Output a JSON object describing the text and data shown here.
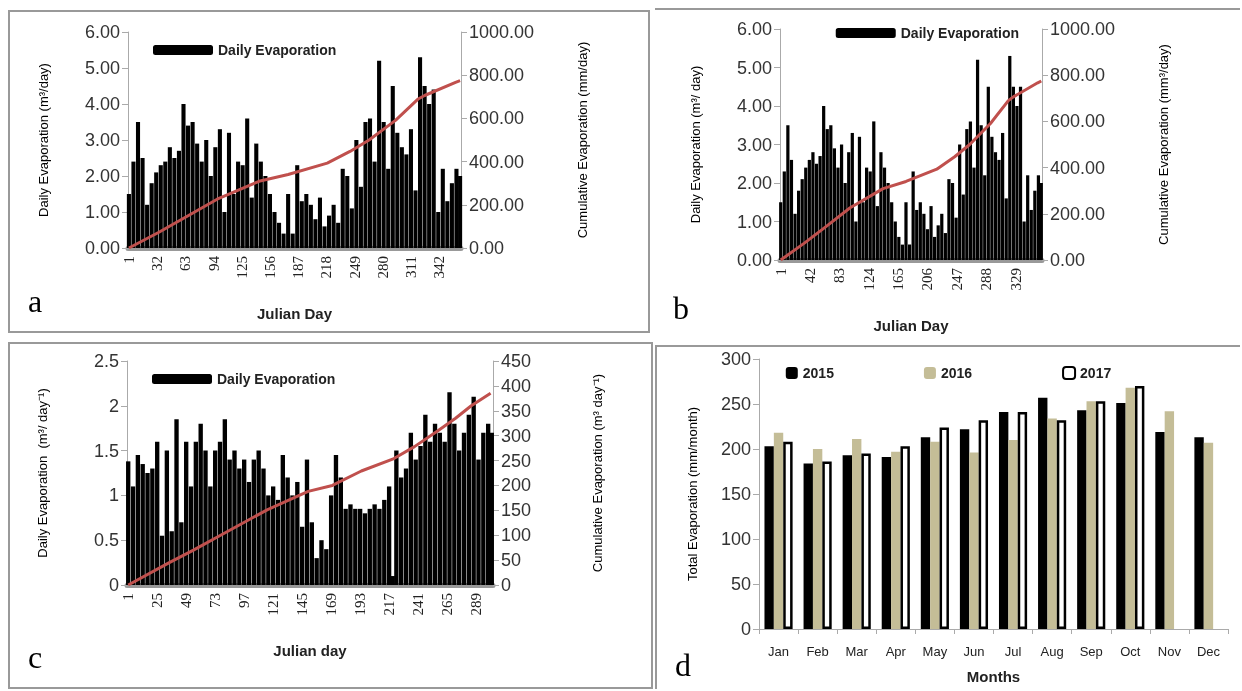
{
  "chart_data": [
    {
      "type": "bar",
      "xlabel": "Julian Day",
      "ylabel": "Daily Evaporation (m³/day)",
      "y2label": "Cumulative Evaporation (mm/day)",
      "legend": "top left",
      "marker": "none",
      "annotations": [
        "a"
      ],
      "xlim": [
        0,
        366
      ],
      "xticks": [
        1,
        32,
        63,
        94,
        125,
        156,
        187,
        218,
        249,
        280,
        311,
        342
      ],
      "ylim": [
        0,
        6
      ],
      "yticks": [
        {
          "value": 0,
          "label": "0.00"
        },
        {
          "value": 1,
          "label": "1.00"
        },
        {
          "value": 2,
          "label": "2.00"
        },
        {
          "value": 3,
          "label": "3.00"
        },
        {
          "value": 4,
          "label": "4.00"
        },
        {
          "value": 5,
          "label": "5.00"
        },
        {
          "value": 6,
          "label": "6.00"
        }
      ],
      "y2lim": [
        0,
        1000
      ],
      "y2ticks": [
        {
          "value": 0,
          "label": "0.00"
        },
        {
          "value": 200,
          "label": "200.00"
        },
        {
          "value": 400,
          "label": "400.00"
        },
        {
          "value": 600,
          "label": "600.00"
        },
        {
          "value": 800,
          "label": "800.00"
        },
        {
          "value": 1000,
          "label": "1000.00"
        }
      ],
      "series": [
        {
          "name": "Daily Evaporation",
          "type": "bar",
          "color": "#000000",
          "x": [
            1,
            6,
            11,
            16,
            21,
            26,
            31,
            36,
            41,
            46,
            51,
            56,
            61,
            66,
            71,
            76,
            81,
            86,
            91,
            96,
            101,
            106,
            111,
            116,
            121,
            126,
            131,
            136,
            141,
            146,
            151,
            156,
            161,
            166,
            171,
            176,
            181,
            186,
            191,
            196,
            201,
            206,
            211,
            216,
            221,
            226,
            231,
            236,
            241,
            246,
            251,
            256,
            261,
            266,
            271,
            276,
            281,
            286,
            291,
            296,
            301,
            306,
            311,
            316,
            321,
            326,
            331,
            336,
            341,
            346,
            351,
            356,
            361,
            365
          ],
          "values": [
            1.5,
            2.4,
            3.5,
            2.5,
            1.2,
            1.8,
            2.1,
            2.3,
            2.4,
            2.8,
            2.5,
            2.7,
            4.0,
            3.4,
            3.5,
            2.9,
            2.4,
            3.0,
            2.0,
            2.8,
            3.3,
            1.0,
            3.2,
            1.5,
            2.4,
            2.3,
            3.6,
            1.4,
            2.9,
            2.4,
            2.0,
            1.5,
            1.0,
            0.7,
            0.4,
            1.5,
            0.4,
            2.3,
            1.3,
            1.5,
            1.2,
            0.8,
            1.4,
            0.6,
            0.9,
            1.2,
            0.7,
            2.2,
            2.0,
            1.1,
            3.0,
            1.7,
            3.5,
            3.6,
            2.4,
            5.2,
            3.5,
            2.2,
            4.5,
            3.2,
            2.8,
            2.6,
            3.3,
            1.6,
            5.3,
            4.5,
            4.0,
            4.4,
            1.0,
            2.2,
            1.3,
            1.8,
            2.2,
            2.0
          ]
        },
        {
          "type": "line",
          "axis": "y2",
          "color": "#c0504d",
          "x": [
            1,
            34,
            66,
            98,
            144,
            176,
            219,
            244,
            265,
            294,
            319,
            326,
            360,
            365
          ],
          "values": [
            0,
            73,
            149,
            226,
            309,
            340,
            393,
            447,
            500,
            591,
            690,
            706,
            767,
            775
          ]
        }
      ]
    },
    {
      "type": "bar",
      "xlabel": "Julian Day",
      "ylabel": "Daily Evaporation (m³/ day)",
      "y2label": "Cumulative Evaporation (mm³/day)",
      "legend": "top right",
      "marker": "none",
      "annotations": [
        "b"
      ],
      "xlim": [
        0,
        366
      ],
      "xticks": [
        1,
        42,
        83,
        124,
        165,
        206,
        247,
        288,
        329
      ],
      "ylim": [
        0,
        6
      ],
      "yticks": [
        {
          "value": 0,
          "label": "0.00"
        },
        {
          "value": 1,
          "label": "1.00"
        },
        {
          "value": 2,
          "label": "2.00"
        },
        {
          "value": 3,
          "label": "3.00"
        },
        {
          "value": 4,
          "label": "4.00"
        },
        {
          "value": 5,
          "label": "5.00"
        },
        {
          "value": 6,
          "label": "6.00"
        }
      ],
      "y2lim": [
        0,
        1000
      ],
      "y2ticks": [
        {
          "value": 0,
          "label": "0.00"
        },
        {
          "value": 200,
          "label": "200.00"
        },
        {
          "value": 400,
          "label": "400.00"
        },
        {
          "value": 600,
          "label": "600.00"
        },
        {
          "value": 800,
          "label": "800.00"
        },
        {
          "value": 1000,
          "label": "1000.00"
        }
      ],
      "series": [
        {
          "name": "Daily Evaporation",
          "type": "bar",
          "color": "#000000",
          "x": [
            1,
            6,
            11,
            16,
            21,
            26,
            31,
            36,
            41,
            46,
            51,
            56,
            61,
            66,
            71,
            76,
            81,
            86,
            91,
            96,
            101,
            106,
            111,
            116,
            121,
            126,
            131,
            136,
            141,
            146,
            151,
            156,
            161,
            166,
            171,
            176,
            181,
            186,
            191,
            196,
            201,
            206,
            211,
            216,
            221,
            226,
            231,
            236,
            241,
            246,
            251,
            256,
            261,
            266,
            271,
            276,
            281,
            286,
            291,
            296,
            301,
            306,
            311,
            316,
            321,
            326,
            331,
            336,
            341,
            346,
            351,
            356,
            361,
            365
          ],
          "values": [
            1.5,
            2.3,
            3.5,
            2.6,
            1.2,
            1.8,
            2.1,
            2.4,
            2.6,
            2.8,
            2.5,
            2.7,
            4.0,
            3.4,
            3.5,
            2.9,
            2.4,
            3.0,
            2.0,
            2.8,
            3.3,
            1.0,
            3.2,
            1.5,
            2.4,
            2.3,
            3.6,
            1.4,
            2.8,
            2.4,
            2.0,
            1.5,
            1.0,
            0.6,
            0.4,
            1.5,
            0.4,
            2.3,
            1.3,
            1.5,
            1.2,
            0.8,
            1.4,
            0.6,
            0.9,
            1.2,
            0.7,
            2.1,
            2.0,
            1.1,
            3.0,
            1.7,
            3.4,
            3.6,
            2.4,
            5.2,
            3.5,
            2.2,
            4.5,
            3.2,
            2.8,
            2.6,
            3.3,
            1.6,
            5.3,
            4.5,
            4.0,
            4.5,
            1.0,
            2.2,
            1.3,
            1.8,
            2.2,
            2.0
          ]
        },
        {
          "type": "line",
          "axis": "y2",
          "color": "#c0504d",
          "x": [
            1,
            34,
            66,
            98,
            144,
            176,
            219,
            244,
            265,
            294,
            319,
            326,
            360,
            365
          ],
          "values": [
            0,
            73,
            149,
            226,
            309,
            340,
            393,
            447,
            500,
            591,
            690,
            706,
            767,
            775
          ]
        }
      ]
    },
    {
      "type": "bar",
      "xlabel": "Julian day",
      "ylabel": "Daily Evaporation  (m³/ day⁻¹)",
      "y2label": "Cumulative Evaporation (m³ day⁻¹)",
      "legend": "top left",
      "marker": "none",
      "annotations": [
        "c"
      ],
      "xlim": [
        0,
        303
      ],
      "xticks": [
        1,
        25,
        49,
        73,
        97,
        121,
        145,
        169,
        193,
        217,
        241,
        265,
        289
      ],
      "ylim": [
        0,
        2.5
      ],
      "yticks": [
        0,
        0.5,
        1,
        1.5,
        2,
        2.5
      ],
      "y2lim": [
        0,
        450
      ],
      "y2ticks": [
        0,
        50,
        100,
        150,
        200,
        250,
        300,
        350,
        400,
        450
      ],
      "series": [
        {
          "name": "Daily Evaporation",
          "type": "bar",
          "color": "#000000",
          "x": [
            1,
            5,
            9,
            13,
            17,
            21,
            25,
            29,
            33,
            37,
            41,
            45,
            49,
            53,
            57,
            61,
            65,
            69,
            73,
            77,
            81,
            85,
            89,
            93,
            97,
            101,
            105,
            109,
            113,
            117,
            121,
            125,
            129,
            133,
            137,
            141,
            145,
            149,
            153,
            157,
            161,
            165,
            169,
            173,
            177,
            181,
            185,
            189,
            193,
            197,
            201,
            205,
            209,
            213,
            217,
            220,
            223,
            227,
            231,
            235,
            239,
            243,
            247,
            251,
            255,
            259,
            263,
            267,
            271,
            275,
            279,
            283,
            287,
            291,
            295,
            299,
            302
          ],
          "values": [
            1.38,
            1.1,
            1.45,
            1.35,
            1.25,
            1.3,
            1.6,
            0.55,
            1.5,
            0.6,
            1.85,
            0.7,
            1.6,
            1.1,
            1.6,
            1.8,
            1.5,
            1.1,
            1.5,
            1.6,
            1.85,
            1.4,
            1.5,
            1.3,
            1.4,
            1.15,
            1.4,
            1.5,
            1.3,
            1.0,
            1.1,
            0.95,
            1.45,
            1.2,
            1.0,
            1.15,
            0.65,
            1.4,
            0.7,
            0.3,
            0.5,
            0.4,
            1.0,
            1.45,
            1.2,
            0.85,
            0.9,
            0.85,
            0.85,
            0.8,
            0.85,
            0.9,
            0.85,
            0.95,
            1.1,
            0.1,
            1.5,
            1.2,
            1.3,
            1.7,
            1.4,
            1.55,
            1.9,
            1.6,
            1.8,
            1.7,
            1.6,
            2.15,
            1.8,
            1.5,
            1.7,
            1.9,
            2.1,
            1.4,
            1.7,
            1.8,
            1.7
          ]
        },
        {
          "type": "line",
          "axis": "y2",
          "color": "#c0504d",
          "x": [
            1,
            35,
            55,
            79,
            116,
            150,
            170,
            194,
            221,
            238,
            258,
            272,
            285,
            301
          ],
          "values": [
            0,
            45,
            70,
            102,
            151,
            188,
            200,
            229,
            254,
            278,
            311,
            335,
            360,
            385
          ]
        }
      ]
    },
    {
      "type": "bar",
      "xlabel": "Months",
      "ylabel": "Total Evaporation (mm/month)",
      "legend": "top",
      "annotations": [
        "d"
      ],
      "categories": [
        "Jan",
        "Feb",
        "Mar",
        "Apr",
        "May",
        "Jun",
        "Jul",
        "Aug",
        "Sep",
        "Oct",
        "Nov",
        "Dec"
      ],
      "ylim": [
        0,
        300
      ],
      "yticks": [
        0,
        50,
        100,
        150,
        200,
        250,
        300
      ],
      "series": [
        {
          "name": "2015",
          "color": "#000000",
          "values": [
            203,
            184,
            193,
            191,
            213,
            222,
            241,
            257,
            243,
            251,
            219,
            213
          ]
        },
        {
          "name": "2016",
          "color": "#c4bd97",
          "values": [
            218,
            200,
            211,
            197,
            208,
            196,
            210,
            234,
            253,
            268,
            242,
            207
          ]
        },
        {
          "name": "2017",
          "color": "#ffffff",
          "values": [
            208,
            186,
            195,
            203,
            224,
            232,
            241,
            232,
            253,
            270,
            null,
            null
          ]
        }
      ]
    }
  ]
}
